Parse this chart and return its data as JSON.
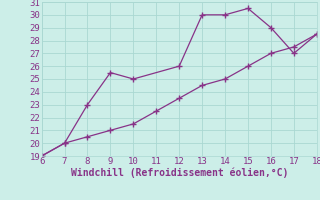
{
  "xlabel": "Windchill (Refroidissement éolien,°C)",
  "line1_x": [
    6,
    7,
    8,
    9,
    10,
    12,
    13,
    14,
    15,
    16,
    17,
    18
  ],
  "line1_y": [
    19,
    20,
    23,
    25.5,
    25,
    26,
    30,
    30,
    30.5,
    29,
    27,
    28.5
  ],
  "line2_x": [
    6,
    7,
    8,
    9,
    10,
    11,
    12,
    13,
    14,
    15,
    16,
    17,
    18
  ],
  "line2_y": [
    19,
    20,
    20.5,
    21,
    21.5,
    22.5,
    23.5,
    24.5,
    25,
    26,
    27,
    27.5,
    28.5
  ],
  "line_color": "#883388",
  "marker": "+",
  "bg_color": "#cceee8",
  "grid_color": "#aad8d2",
  "xlim": [
    6,
    18
  ],
  "ylim": [
    19,
    31
  ],
  "xticks": [
    6,
    7,
    8,
    9,
    10,
    11,
    12,
    13,
    14,
    15,
    16,
    17,
    18
  ],
  "yticks": [
    19,
    20,
    21,
    22,
    23,
    24,
    25,
    26,
    27,
    28,
    29,
    30,
    31
  ],
  "tick_fontsize": 6.5,
  "xlabel_fontsize": 7.0
}
